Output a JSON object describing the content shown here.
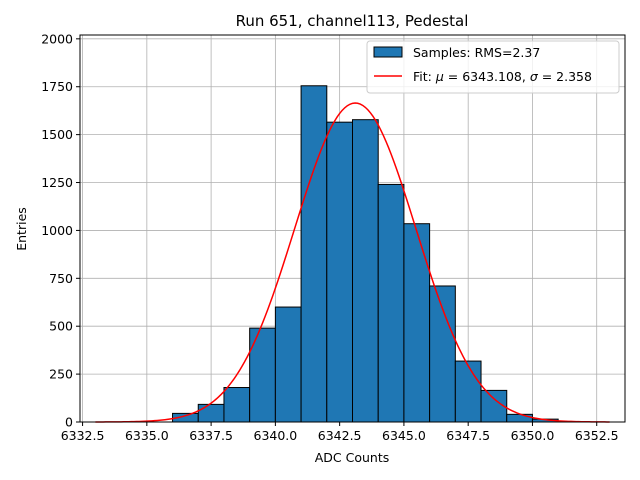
{
  "chart_data": {
    "type": "bar",
    "title": "Run 651, channel113, Pedestal",
    "xlabel": "ADC Counts",
    "ylabel": "Entries",
    "xlim": [
      6332.4,
      6353.6
    ],
    "ylim": [
      0,
      2020
    ],
    "grid": true,
    "legend_position": "top-right",
    "bin_width": 1.0,
    "bins": [
      {
        "left": 6336,
        "value": 45
      },
      {
        "left": 6337,
        "value": 92
      },
      {
        "left": 6338,
        "value": 180
      },
      {
        "left": 6339,
        "value": 490
      },
      {
        "left": 6340,
        "value": 600
      },
      {
        "left": 6341,
        "value": 1755
      },
      {
        "left": 6342,
        "value": 1565
      },
      {
        "left": 6343,
        "value": 1578
      },
      {
        "left": 6344,
        "value": 1240
      },
      {
        "left": 6345,
        "value": 1035
      },
      {
        "left": 6346,
        "value": 710
      },
      {
        "left": 6347,
        "value": 318
      },
      {
        "left": 6348,
        "value": 165
      },
      {
        "left": 6349,
        "value": 40
      },
      {
        "left": 6350,
        "value": 15
      }
    ],
    "fit": {
      "mu": 6343.108,
      "sigma": 2.358,
      "amplitude": 1665,
      "x_range": [
        6333.0,
        6353.0
      ]
    },
    "xticks": [
      {
        "value": 6332.5,
        "label": "6332.5"
      },
      {
        "value": 6335.0,
        "label": "6335.0"
      },
      {
        "value": 6337.5,
        "label": "6337.5"
      },
      {
        "value": 6340.0,
        "label": "6340.0"
      },
      {
        "value": 6342.5,
        "label": "6342.5"
      },
      {
        "value": 6345.0,
        "label": "6345.0"
      },
      {
        "value": 6347.5,
        "label": "6347.5"
      },
      {
        "value": 6350.0,
        "label": "6350.0"
      },
      {
        "value": 6352.5,
        "label": "6352.5"
      }
    ],
    "yticks": [
      {
        "value": 0,
        "label": "0"
      },
      {
        "value": 250,
        "label": "250"
      },
      {
        "value": 500,
        "label": "500"
      },
      {
        "value": 750,
        "label": "750"
      },
      {
        "value": 1000,
        "label": "1000"
      },
      {
        "value": 1250,
        "label": "1250"
      },
      {
        "value": 1500,
        "label": "1500"
      },
      {
        "value": 1750,
        "label": "1750"
      },
      {
        "value": 2000,
        "label": "2000"
      }
    ],
    "legend": {
      "samples_label": "Samples: RMS=2.37",
      "fit_prefix": "Fit: ",
      "fit_mu_symbol": "μ",
      "fit_middle": " = 6343.108, ",
      "fit_sigma_symbol": "σ",
      "fit_suffix": " = 2.358"
    },
    "colors": {
      "bar_fill": "#1f77b4",
      "bar_edge": "#000000",
      "fit_line": "#ff0000",
      "grid": "#b0b0b0"
    }
  }
}
